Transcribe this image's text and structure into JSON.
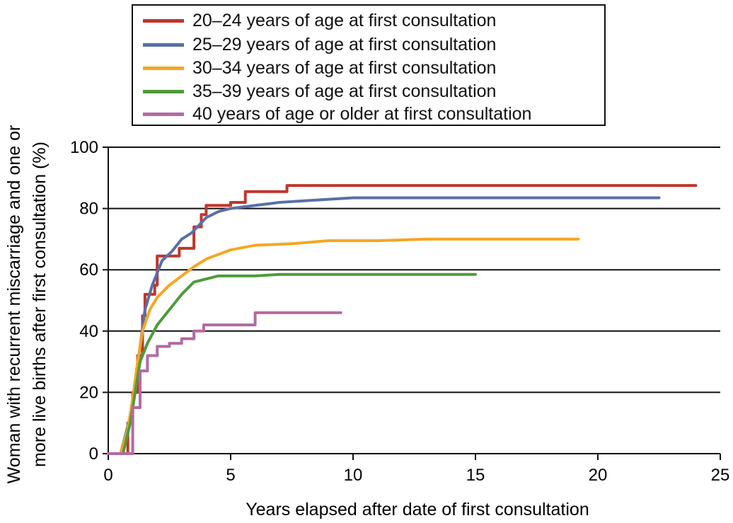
{
  "chart_data": {
    "type": "line",
    "xlabel": "Years elapsed after date of first consultation",
    "ylabel": "Woman with recurrent miscarriage and one or more live births after first consultation (%)",
    "ylabel_lines": [
      "Woman with recurrent miscarriage and one or",
      "more live births after first consultation (%)"
    ],
    "xlim": [
      0,
      25
    ],
    "ylim": [
      0,
      100
    ],
    "xticks": [
      "0",
      "5",
      "10",
      "15",
      "20",
      "25"
    ],
    "yticks": [
      "0",
      "20",
      "40",
      "60",
      "80",
      "100"
    ],
    "grid": "horizontal",
    "legend_position": "top",
    "series": [
      {
        "name": "20–24 years of age at first consultation",
        "color": "#c0352b",
        "step": true,
        "points": [
          [
            0,
            0
          ],
          [
            0.6,
            0
          ],
          [
            0.8,
            10
          ],
          [
            1.0,
            20
          ],
          [
            1.2,
            32
          ],
          [
            1.4,
            45
          ],
          [
            1.5,
            52
          ],
          [
            1.9,
            55
          ],
          [
            2.0,
            64.5
          ],
          [
            2.7,
            64.5
          ],
          [
            2.9,
            67
          ],
          [
            3.3,
            67
          ],
          [
            3.5,
            74
          ],
          [
            3.8,
            78
          ],
          [
            4.0,
            81
          ],
          [
            4.8,
            81
          ],
          [
            5.0,
            82
          ],
          [
            5.4,
            82
          ],
          [
            5.6,
            85.5
          ],
          [
            7.0,
            85.5
          ],
          [
            7.3,
            87.5
          ],
          [
            24,
            87.5
          ]
        ]
      },
      {
        "name": "25–29 years of age at first consultation",
        "color": "#5a6fa8",
        "step": false,
        "points": [
          [
            0,
            0
          ],
          [
            0.5,
            0
          ],
          [
            0.9,
            12
          ],
          [
            1.1,
            22
          ],
          [
            1.3,
            35
          ],
          [
            1.5,
            47
          ],
          [
            1.8,
            55
          ],
          [
            2.2,
            63
          ],
          [
            2.6,
            66
          ],
          [
            3.0,
            70
          ],
          [
            3.4,
            72
          ],
          [
            4.0,
            77
          ],
          [
            4.5,
            79
          ],
          [
            5.0,
            80
          ],
          [
            6.0,
            81
          ],
          [
            7.0,
            82
          ],
          [
            8.0,
            82.5
          ],
          [
            9.0,
            83
          ],
          [
            10.0,
            83.5
          ],
          [
            12.0,
            83.5
          ],
          [
            15.0,
            83.5
          ],
          [
            22.5,
            83.5
          ]
        ]
      },
      {
        "name": "30–34 years of age at first consultation",
        "color": "#f5a623",
        "step": false,
        "points": [
          [
            0,
            0
          ],
          [
            0.5,
            0
          ],
          [
            0.8,
            8
          ],
          [
            1.0,
            18
          ],
          [
            1.2,
            30
          ],
          [
            1.4,
            40
          ],
          [
            1.7,
            47
          ],
          [
            2.0,
            51
          ],
          [
            2.5,
            55
          ],
          [
            3.0,
            58
          ],
          [
            3.5,
            61
          ],
          [
            4.0,
            63.5
          ],
          [
            4.5,
            65
          ],
          [
            5.0,
            66.5
          ],
          [
            6.0,
            68
          ],
          [
            7.5,
            68.5
          ],
          [
            9.0,
            69.5
          ],
          [
            11.0,
            69.5
          ],
          [
            13.0,
            70
          ],
          [
            15.0,
            70
          ],
          [
            19.2,
            70
          ]
        ]
      },
      {
        "name": "35–39 years of age at first consultation",
        "color": "#4f9a3c",
        "step": false,
        "points": [
          [
            0,
            0
          ],
          [
            0.6,
            0
          ],
          [
            0.9,
            10
          ],
          [
            1.1,
            20
          ],
          [
            1.3,
            30
          ],
          [
            1.6,
            36
          ],
          [
            2.0,
            42
          ],
          [
            2.5,
            47
          ],
          [
            3.0,
            52
          ],
          [
            3.5,
            56
          ],
          [
            4.0,
            57
          ],
          [
            4.5,
            58
          ],
          [
            5.0,
            58
          ],
          [
            6.0,
            58
          ],
          [
            7.0,
            58.5
          ],
          [
            8.0,
            58.5
          ],
          [
            10.0,
            58.5
          ],
          [
            12.0,
            58.5
          ],
          [
            15.0,
            58.5
          ]
        ]
      },
      {
        "name": "40 years of age or older at first consultation",
        "color": "#b36aa4",
        "step": true,
        "points": [
          [
            0,
            0
          ],
          [
            0.8,
            0
          ],
          [
            1.0,
            15
          ],
          [
            1.3,
            27
          ],
          [
            1.6,
            32
          ],
          [
            2.0,
            35
          ],
          [
            2.5,
            36
          ],
          [
            3.0,
            37.5
          ],
          [
            3.5,
            40
          ],
          [
            3.9,
            42
          ],
          [
            5.9,
            42
          ],
          [
            6.0,
            46
          ],
          [
            9.5,
            46
          ]
        ]
      }
    ]
  }
}
